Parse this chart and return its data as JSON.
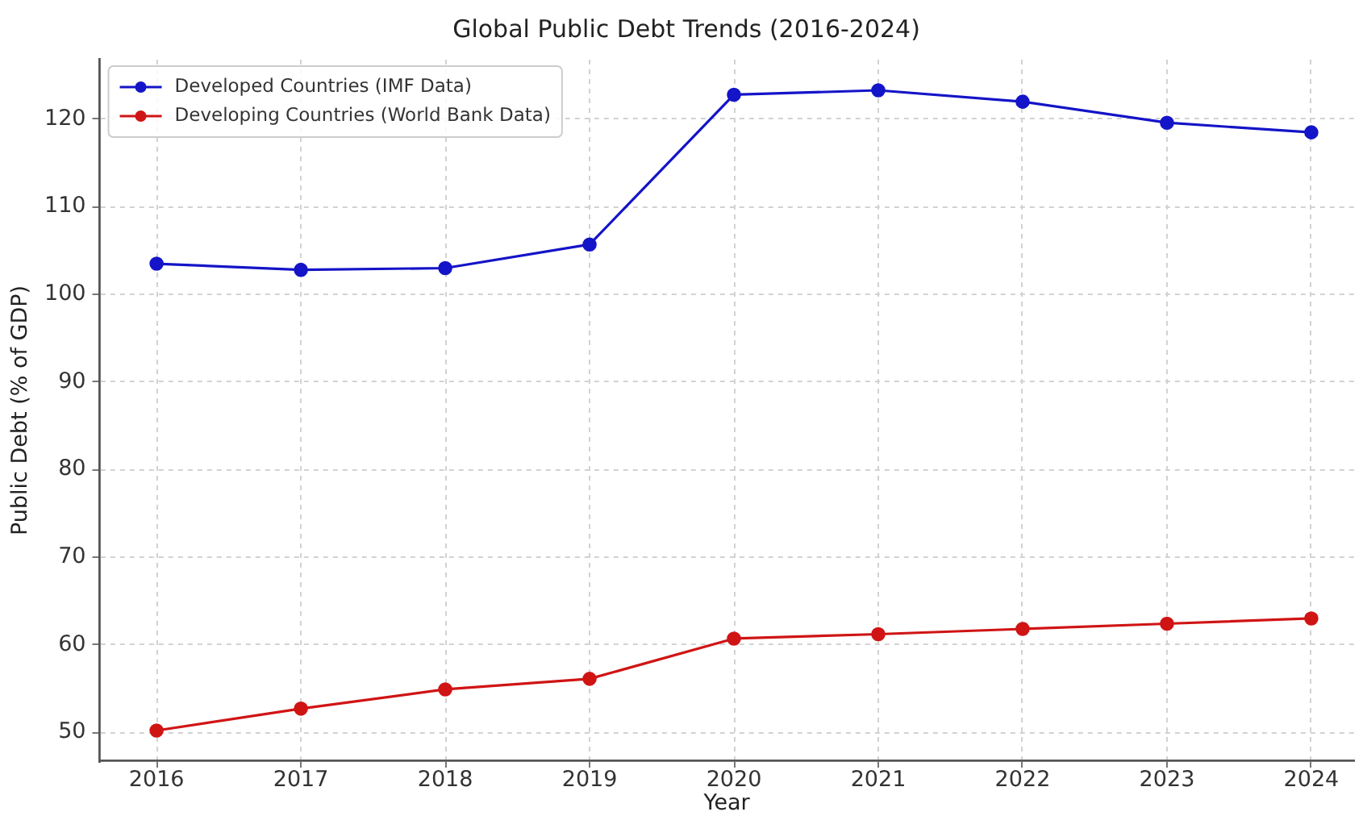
{
  "chart_data": {
    "type": "line",
    "title": "Global Public Debt Trends (2016-2024)",
    "xlabel": "Year",
    "ylabel": "Public Debt (% of GDP)",
    "x": [
      2016,
      2017,
      2018,
      2019,
      2020,
      2021,
      2022,
      2023,
      2024
    ],
    "series": [
      {
        "name": "Developed Countries (IMF Data)",
        "color": "#1414c8",
        "values": [
          103.5,
          102.8,
          103.0,
          105.7,
          122.8,
          123.3,
          122.0,
          119.6,
          118.5
        ]
      },
      {
        "name": "Developing Countries (World Bank Data)",
        "color": "#d01414",
        "values": [
          50.2,
          52.7,
          54.9,
          56.1,
          60.7,
          61.2,
          61.8,
          62.4,
          63.0
        ]
      }
    ],
    "xlim": [
      2015.6,
      2024.3
    ],
    "xticks": [
      2016,
      2017,
      2018,
      2019,
      2020,
      2021,
      2022,
      2023,
      2024
    ],
    "ylim": [
      46.7,
      126.8
    ],
    "yticks": [
      50,
      60,
      70,
      80,
      90,
      100,
      110,
      120
    ],
    "grid": true,
    "legend": "top left",
    "marker": "circle",
    "line_style": "solid"
  }
}
